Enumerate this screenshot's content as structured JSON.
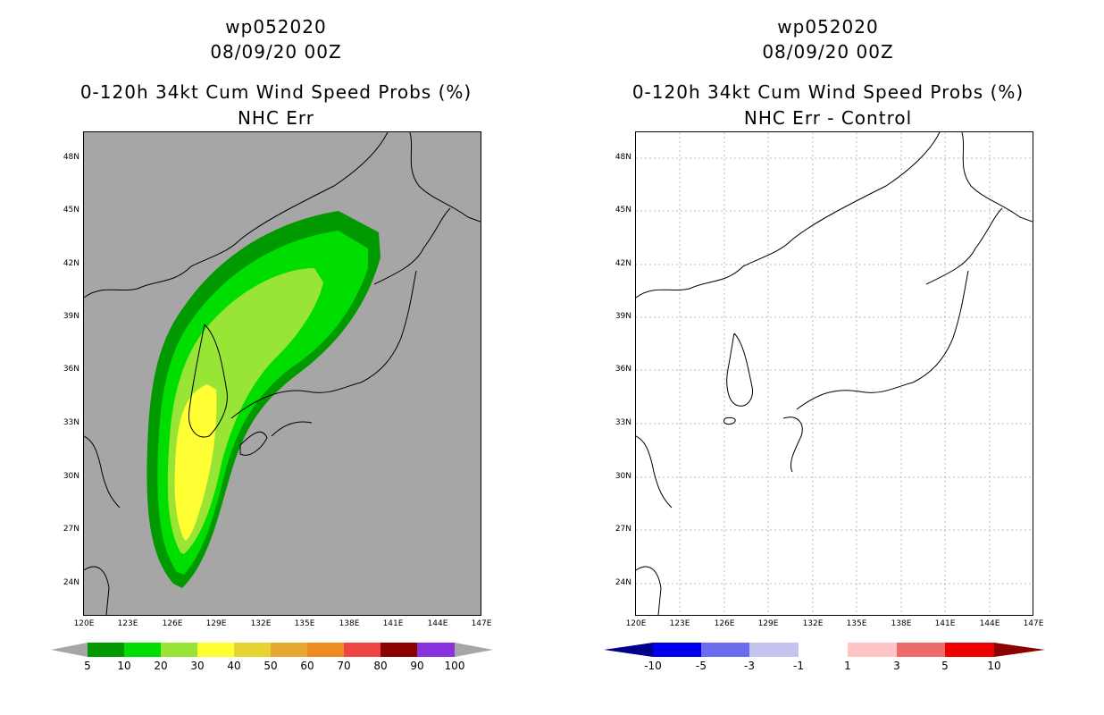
{
  "panels": [
    {
      "id": "left",
      "title_lines": [
        "wp052020",
        "08/09/20 00Z",
        "0-120h 34kt Cum Wind Speed Probs (%)",
        "NHC Err"
      ],
      "lat_ticks": [
        "48N",
        "45N",
        "42N",
        "39N",
        "36N",
        "33N",
        "30N",
        "27N",
        "24N"
      ],
      "lon_ticks": [
        "120E",
        "123E",
        "126E",
        "129E",
        "132E",
        "135E",
        "138E",
        "141E",
        "144E",
        "147E"
      ],
      "background": "#a6a6a6",
      "colorbar": {
        "labels": [
          "5",
          "10",
          "20",
          "30",
          "40",
          "50",
          "60",
          "70",
          "80",
          "90",
          "100"
        ],
        "colors": [
          "#009900",
          "#00dd00",
          "#99e535",
          "#ffff33",
          "#e6d433",
          "#e6a833",
          "#ee8c23",
          "#ee4444",
          "#8b0000",
          "#8833dd"
        ],
        "end_colors": [
          "#a6a6a6",
          "#a6a6a6"
        ]
      }
    },
    {
      "id": "right",
      "title_lines": [
        "wp052020",
        "08/09/20 00Z",
        "0-120h 34kt Cum Wind Speed Probs (%)",
        "NHC Err - Control"
      ],
      "lat_ticks": [
        "48N",
        "45N",
        "42N",
        "39N",
        "36N",
        "33N",
        "30N",
        "27N",
        "24N"
      ],
      "lon_ticks": [
        "120E",
        "123E",
        "126E",
        "129E",
        "132E",
        "135E",
        "138E",
        "141E",
        "144E",
        "147E"
      ],
      "background": "#ffffff",
      "colorbar": {
        "labels": [
          "-10",
          "-5",
          "-3",
          "-1",
          "1",
          "3",
          "5",
          "10"
        ],
        "colors": [
          "#0000ee",
          "#6b6bee",
          "#c4c4ee",
          "#ffffff",
          "#ffc4c4",
          "#ee6b6b",
          "#ee0000"
        ],
        "end_colors": [
          "#00008b",
          "#8b0000"
        ]
      }
    }
  ]
}
